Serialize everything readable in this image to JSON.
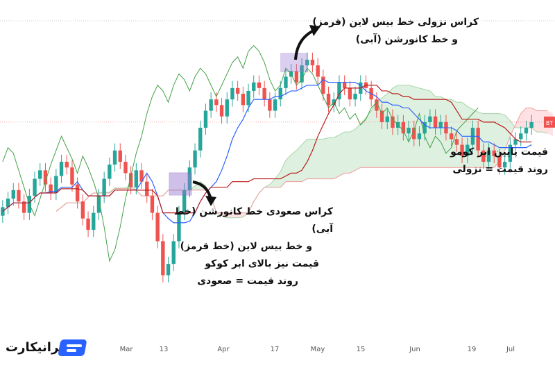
{
  "chart_data": {
    "type": "candlestick",
    "indicator": "ichimoku",
    "x_ticks": [
      "Mar",
      "13",
      "Apr",
      "17",
      "May",
      "15",
      "Jun",
      "19",
      "Jul"
    ],
    "price_tag": "BT",
    "colors": {
      "bull": "#26a69a",
      "bear": "#ef5350",
      "conversion_line": "#2962ff",
      "base_line": "#b71c1c",
      "lagging_span": "#43a047",
      "cloud_bull": "#c8e6c9",
      "cloud_bear": "#ffcdd2",
      "cross_box": "#9575cd"
    },
    "series": {
      "close": [
        0.42,
        0.45,
        0.48,
        0.44,
        0.4,
        0.46,
        0.52,
        0.55,
        0.5,
        0.47,
        0.53,
        0.58,
        0.56,
        0.5,
        0.44,
        0.38,
        0.34,
        0.4,
        0.46,
        0.52,
        0.57,
        0.62,
        0.58,
        0.54,
        0.49,
        0.55,
        0.51,
        0.46,
        0.4,
        0.3,
        0.18,
        0.22,
        0.3,
        0.4,
        0.48,
        0.56,
        0.62,
        0.7,
        0.76,
        0.8,
        0.78,
        0.74,
        0.8,
        0.84,
        0.82,
        0.78,
        0.83,
        0.86,
        0.84,
        0.8,
        0.76,
        0.8,
        0.84,
        0.88,
        0.9,
        0.86,
        0.92,
        0.94,
        0.92,
        0.88,
        0.82,
        0.78,
        0.8,
        0.86,
        0.84,
        0.8,
        0.82,
        0.86,
        0.84,
        0.8,
        0.76,
        0.72,
        0.74,
        0.7,
        0.72,
        0.68,
        0.7,
        0.66,
        0.68,
        0.72,
        0.74,
        0.7,
        0.72,
        0.68,
        0.66,
        0.64,
        0.6,
        0.64,
        0.7,
        0.62,
        0.58,
        0.62,
        0.6,
        0.56,
        0.58,
        0.64,
        0.66,
        0.68,
        0.7,
        0.72
      ]
    }
  },
  "annotations": {
    "top_right_line1": "کراس نزولی خط بیس لاین (قرمز)",
    "top_right_line2": "و خط کانورشن (آبی)",
    "right_line1": "قیمت پایین ابر کومو",
    "right_line2": "روند قیمت = نزولی",
    "center_line1": "کراس صعودی خط کانورشن (خط آبی)",
    "center_line2": "و خط بیس لاین (خط قرمز)",
    "center_line3": "قیمت نیز بالای ابر کوکو",
    "center_line4": "روند قیمت = صعودی"
  },
  "logo": {
    "text": "ایرانیکارت"
  }
}
